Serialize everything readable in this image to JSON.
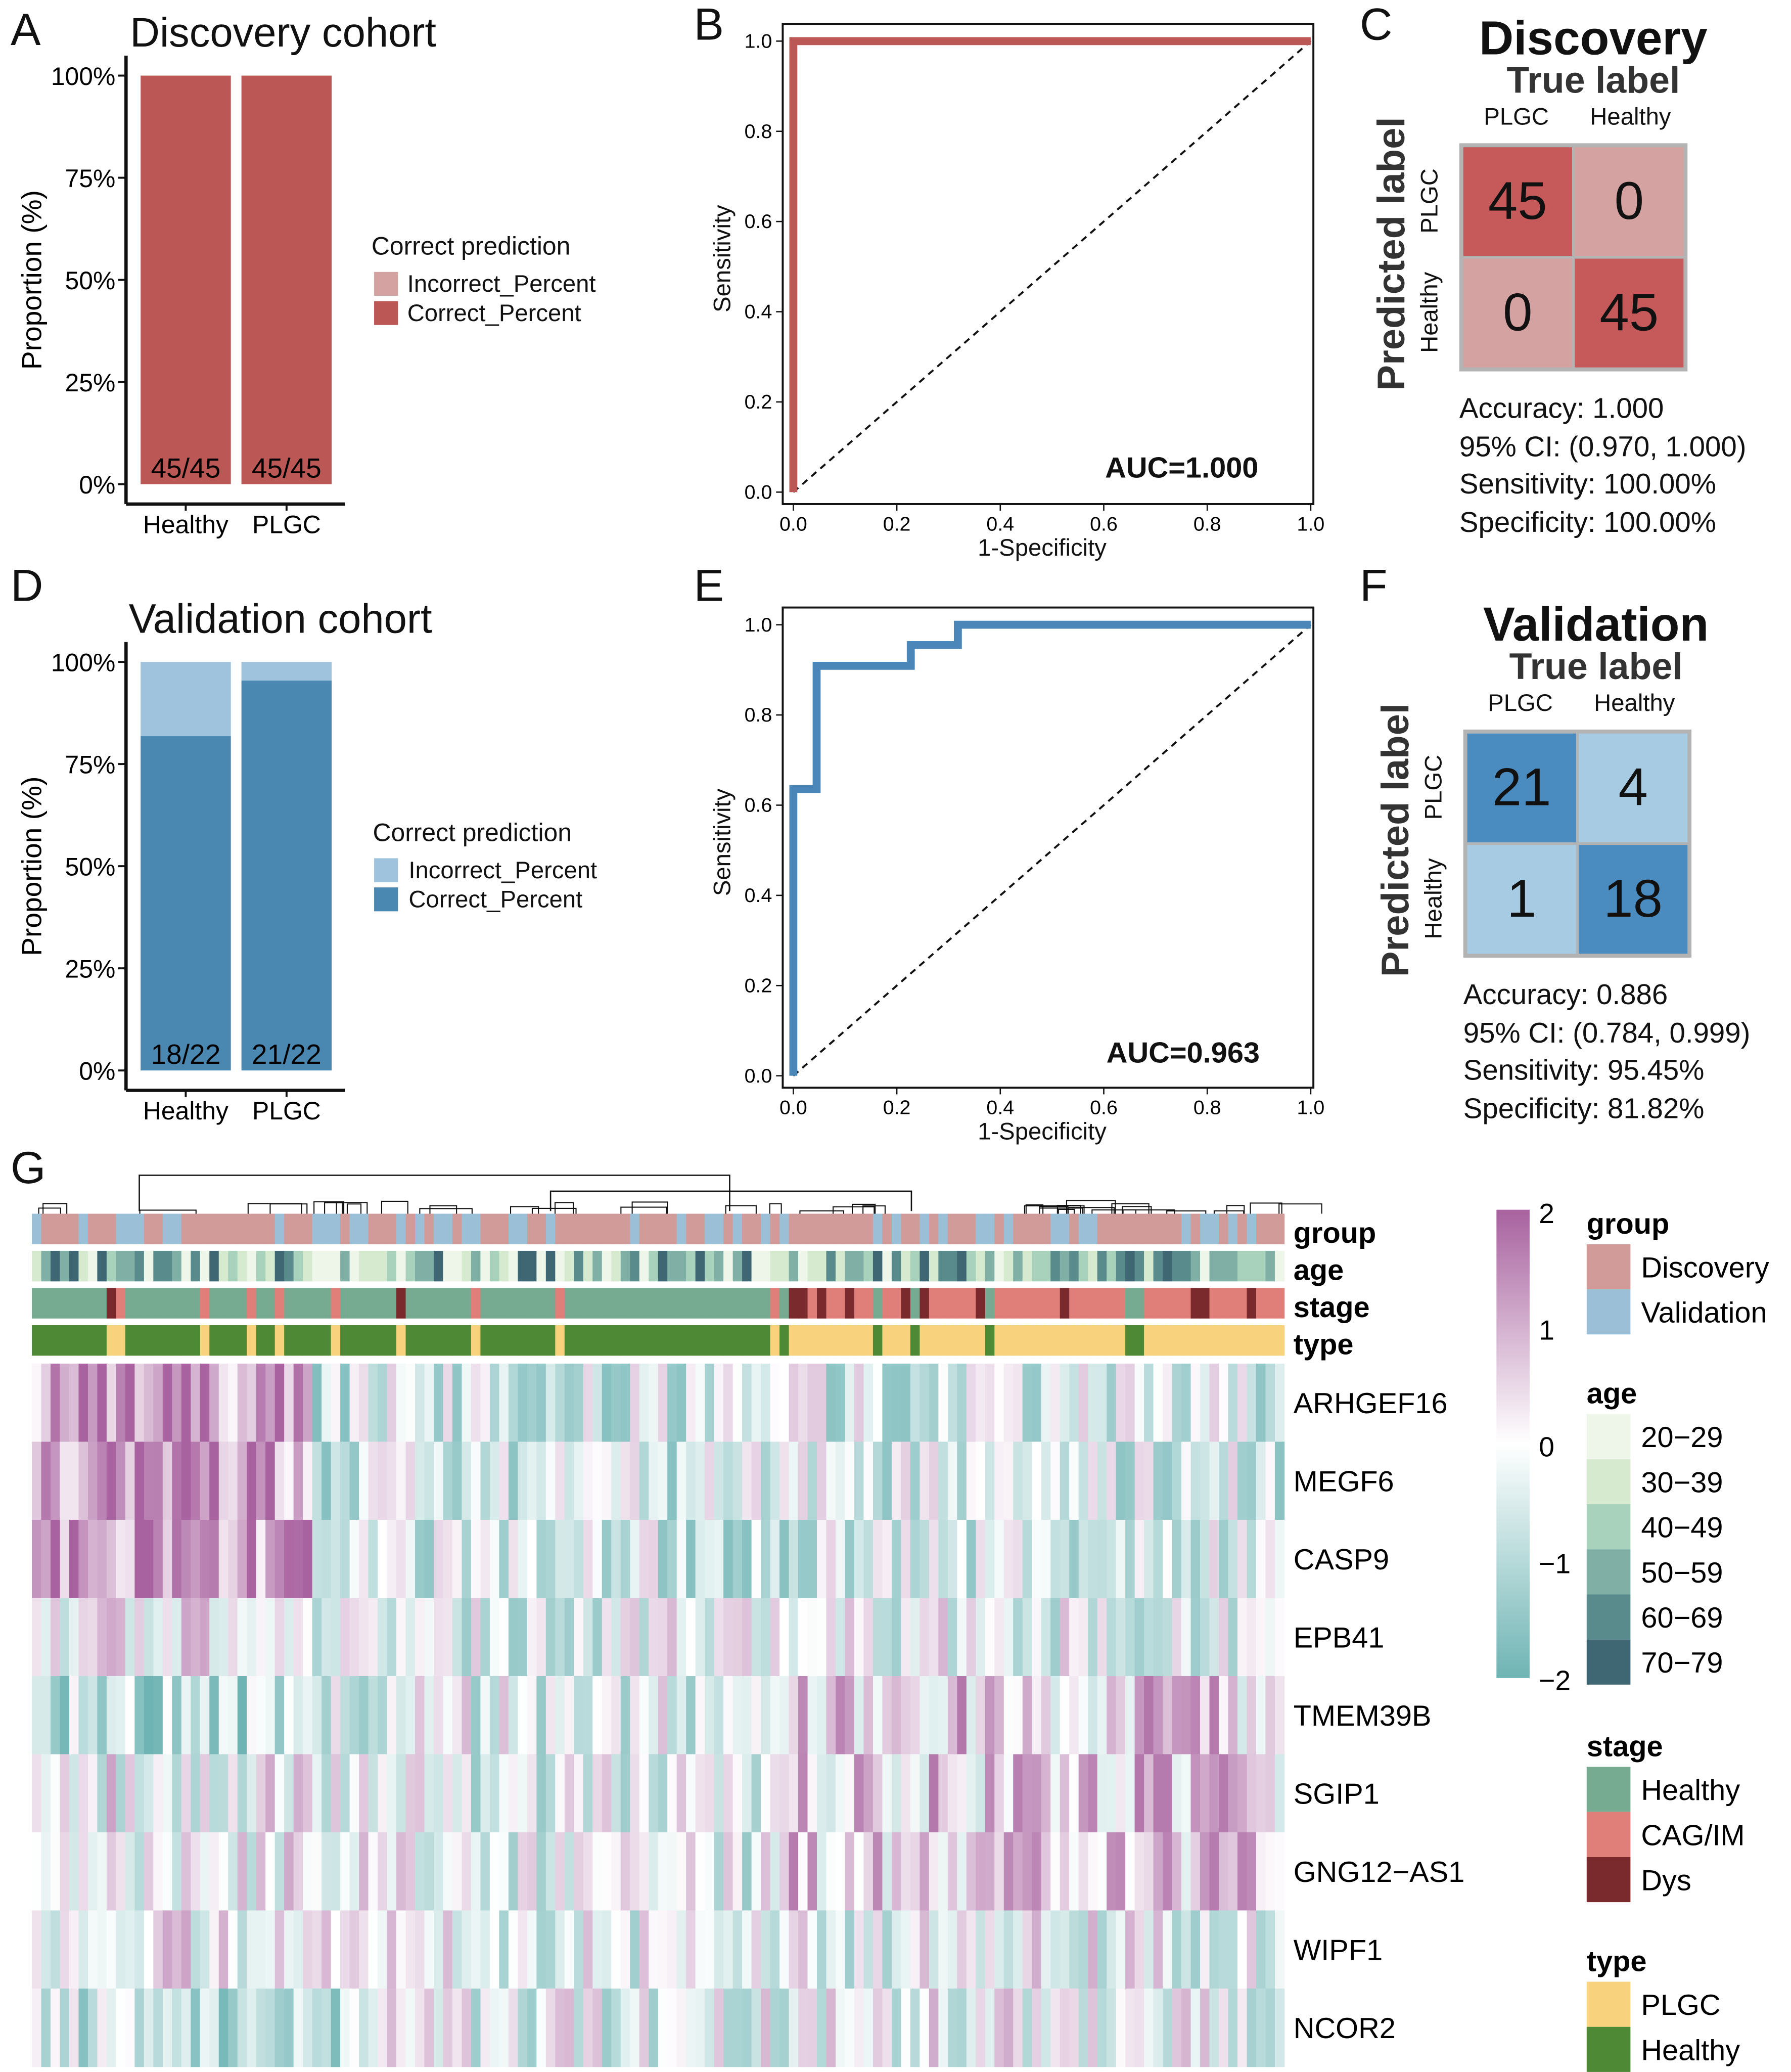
{
  "panels": {
    "A": "A",
    "B": "B",
    "C": "C",
    "D": "D",
    "E": "E",
    "F": "F",
    "G": "G"
  },
  "chart_data": [
    {
      "panel": "A",
      "type": "bar",
      "stacked": true,
      "title": "Discovery cohort",
      "ylabel": "Proportion (%)",
      "xlabel": "",
      "categories": [
        "Healthy",
        "PLGC"
      ],
      "yticks": [
        "0%",
        "25%",
        "50%",
        "75%",
        "100%"
      ],
      "ylim": [
        0,
        100
      ],
      "series": [
        {
          "name": "Incorrect_Percent",
          "values": [
            0,
            0
          ],
          "color": "#d4a3a1"
        },
        {
          "name": "Correct_Percent",
          "values": [
            100,
            100
          ],
          "color": "#bb5855"
        }
      ],
      "bar_labels": [
        "45/45",
        "45/45"
      ],
      "legend_title": "Correct prediction",
      "legend": "right"
    },
    {
      "panel": "B",
      "type": "line",
      "xlabel": "1-Specificity",
      "ylabel": "Sensitivity",
      "xlim": [
        0,
        1
      ],
      "ylim": [
        0,
        1
      ],
      "xticks": [
        "0.0",
        "0.2",
        "0.4",
        "0.6",
        "0.8",
        "1.0"
      ],
      "yticks": [
        "0.0",
        "0.2",
        "0.4",
        "0.6",
        "0.8",
        "1.0"
      ],
      "series": [
        {
          "x": [
            0,
            0,
            1
          ],
          "y": [
            0,
            1,
            1
          ],
          "color": "#bb5855"
        }
      ],
      "diagonal": true,
      "annotation": "AUC=1.000"
    },
    {
      "panel": "C",
      "type": "table",
      "title": "Discovery",
      "col_title": "True label",
      "row_title": "Predicted label",
      "columns": [
        "PLGC",
        "Healthy"
      ],
      "rows": [
        "PLGC",
        "Healthy"
      ],
      "values": [
        [
          45,
          0
        ],
        [
          0,
          45
        ]
      ],
      "colors": {
        "diag": "#c65a5a",
        "off": "#d4a3a1"
      },
      "stats": [
        "Accuracy:  1.000",
        "95% CI: (0.970, 1.000)",
        "Sensitivity: 100.00%",
        "Specificity: 100.00%"
      ]
    },
    {
      "panel": "D",
      "type": "bar",
      "stacked": true,
      "title": "Validation cohort",
      "ylabel": "Proportion (%)",
      "xlabel": "",
      "categories": [
        "Healthy",
        "PLGC"
      ],
      "yticks": [
        "0%",
        "25%",
        "50%",
        "75%",
        "100%"
      ],
      "ylim": [
        0,
        100
      ],
      "series": [
        {
          "name": "Incorrect_Percent",
          "values": [
            18.18,
            4.55
          ],
          "color": "#9fc3dc"
        },
        {
          "name": "Correct_Percent",
          "values": [
            81.82,
            95.45
          ],
          "color": "#4a87b1"
        }
      ],
      "bar_labels": [
        "18/22",
        "21/22"
      ],
      "legend_title": "Correct prediction",
      "legend": "right"
    },
    {
      "panel": "E",
      "type": "line",
      "xlabel": "1-Specificity",
      "ylabel": "Sensitivity",
      "xlim": [
        0,
        1
      ],
      "ylim": [
        0,
        1
      ],
      "xticks": [
        "0.0",
        "0.2",
        "0.4",
        "0.6",
        "0.8",
        "1.0"
      ],
      "yticks": [
        "0.0",
        "0.2",
        "0.4",
        "0.6",
        "0.8",
        "1.0"
      ],
      "series": [
        {
          "x": [
            0,
            0,
            0.045,
            0.045,
            0.227,
            0.227,
            0.318,
            0.318,
            1
          ],
          "y": [
            0,
            0.636,
            0.636,
            0.909,
            0.909,
            0.955,
            0.955,
            1,
            1
          ],
          "color": "#4a87b8"
        }
      ],
      "diagonal": true,
      "annotation": "AUC=0.963"
    },
    {
      "panel": "F",
      "type": "table",
      "title": "Validation",
      "col_title": "True label",
      "row_title": "Predicted label",
      "columns": [
        "PLGC",
        "Healthy"
      ],
      "rows": [
        "PLGC",
        "Healthy"
      ],
      "values": [
        [
          21,
          4
        ],
        [
          1,
          18
        ]
      ],
      "colors": {
        "diag": "#4a8bc0",
        "off": "#a6cbe3"
      },
      "stats": [
        "Accuracy: 0.886",
        "95% CI: (0.784, 0.999)",
        "Sensitivity: 95.45%",
        "Specificity: 81.82%"
      ]
    },
    {
      "panel": "G",
      "type": "heatmap",
      "genes": [
        "ARHGEF16",
        "MEGF6",
        "CASP9",
        "EPB41",
        "TMEM39B",
        "SGIP1",
        "GNG12−AS1",
        "WIPF1",
        "NCOR2"
      ],
      "annotation_tracks": [
        "group",
        "age",
        "stage",
        "type"
      ],
      "color_scale": {
        "range": [
          -2,
          2
        ],
        "ticks": [
          "2",
          "1",
          "0",
          "−1",
          "−2"
        ],
        "colors": [
          "#a8629f",
          "#ffffff",
          "#6fb4b4"
        ]
      },
      "legends": [
        {
          "title": "group",
          "items": [
            {
              "label": "Discovery",
              "color": "#d09b99"
            },
            {
              "label": "Validation",
              "color": "#9bbfd6"
            }
          ]
        },
        {
          "title": "age",
          "items": [
            {
              "label": "20−29",
              "color": "#eef6ea"
            },
            {
              "label": "30−39",
              "color": "#d6ead0"
            },
            {
              "label": "40−49",
              "color": "#a9d2bd"
            },
            {
              "label": "50−59",
              "color": "#80b0a5"
            },
            {
              "label": "60−69",
              "color": "#5a8b8c"
            },
            {
              "label": "70−79",
              "color": "#3f6673"
            }
          ]
        },
        {
          "title": "stage",
          "items": [
            {
              "label": "Healthy",
              "color": "#76ab91"
            },
            {
              "label": "CAG/IM",
              "color": "#e07f79"
            },
            {
              "label": "Dys",
              "color": "#7a2a2c"
            }
          ]
        },
        {
          "title": "type",
          "items": [
            {
              "label": "PLGC",
              "color": "#f8d27c"
            },
            {
              "label": "Healthy",
              "color": "#4e8a35"
            }
          ]
        }
      ]
    }
  ]
}
